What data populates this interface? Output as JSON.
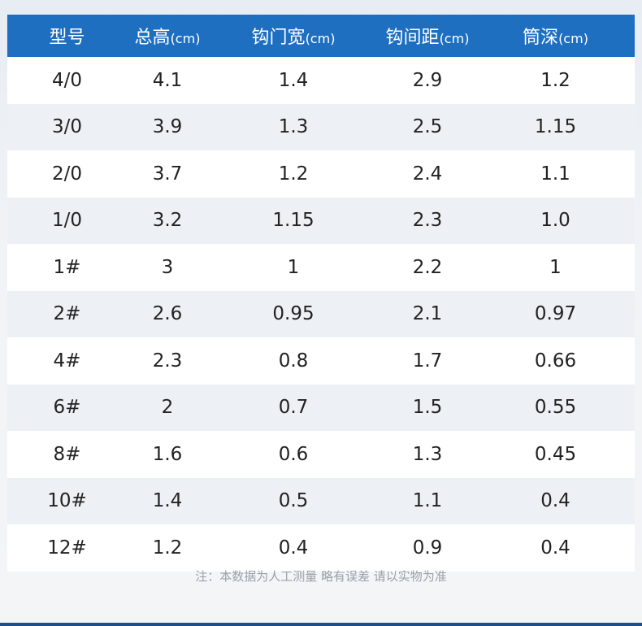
{
  "table": {
    "headers": [
      {
        "label": "型号",
        "unit": ""
      },
      {
        "label": "总高",
        "unit": "(cm)"
      },
      {
        "label": "钩门宽",
        "unit": "(cm)"
      },
      {
        "label": "钩间距",
        "unit": "(cm)"
      },
      {
        "label": "筒深",
        "unit": "(cm)"
      }
    ],
    "rows": [
      [
        "4/0",
        "4.1",
        "1.4",
        "2.9",
        "1.2"
      ],
      [
        "3/0",
        "3.9",
        "1.3",
        "2.5",
        "1.15"
      ],
      [
        "2/0",
        "3.7",
        "1.2",
        "2.4",
        "1.1"
      ],
      [
        "1/0",
        "3.2",
        "1.15",
        "2.3",
        "1.0"
      ],
      [
        "1#",
        "3",
        "1",
        "2.2",
        "1"
      ],
      [
        "2#",
        "2.6",
        "0.95",
        "2.1",
        "0.97"
      ],
      [
        "4#",
        "2.3",
        "0.8",
        "1.7",
        "0.66"
      ],
      [
        "6#",
        "2",
        "0.7",
        "1.5",
        "0.55"
      ],
      [
        "8#",
        "1.6",
        "0.6",
        "1.3",
        "0.45"
      ],
      [
        "10#",
        "1.4",
        "0.5",
        "1.1",
        "0.4"
      ],
      [
        "12#",
        "1.2",
        "0.4",
        "0.9",
        "0.4"
      ]
    ]
  },
  "note": "注：本数据为人工测量 略有误差 请以实物为准",
  "colors": {
    "header_bg": "#1f6fc0",
    "row_alt_bg": "#edf0f4",
    "row_bg": "#ffffff",
    "text": "#222222",
    "note_text": "#9aa1ab"
  }
}
